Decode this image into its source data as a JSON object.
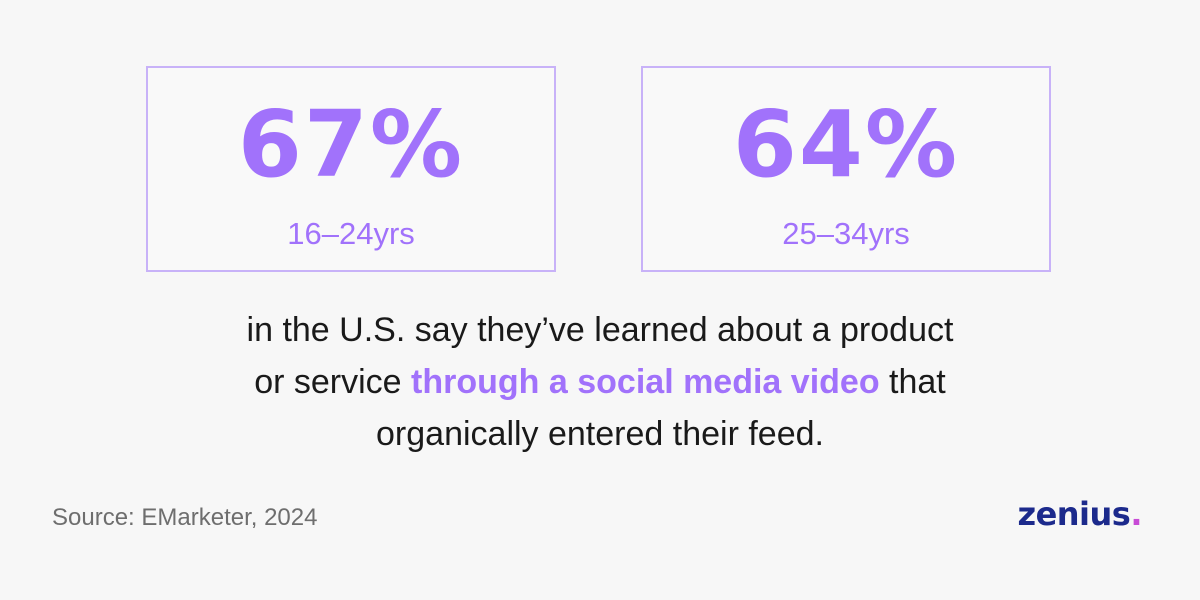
{
  "stats": [
    {
      "value": "67%",
      "label": "16–24yrs"
    },
    {
      "value": "64%",
      "label": "25–34yrs"
    }
  ],
  "statement": {
    "line1": "in the U.S. say they’ve learned about a product",
    "line2_before": "or service ",
    "line2_highlight": "through a social media video",
    "line2_after": " that",
    "line3": "organically entered their feed."
  },
  "source": "Source: EMarketer, 2024",
  "brand": {
    "name": "zenius",
    "dot": "."
  },
  "colors": {
    "accent": "#a172fb",
    "card_border": "#c8b2f8",
    "text": "#1a1a1a",
    "muted": "#6e6e6e",
    "brand": "#1c2a8c",
    "brand_dot": "#c84bd6",
    "background": "#f7f7f7"
  }
}
